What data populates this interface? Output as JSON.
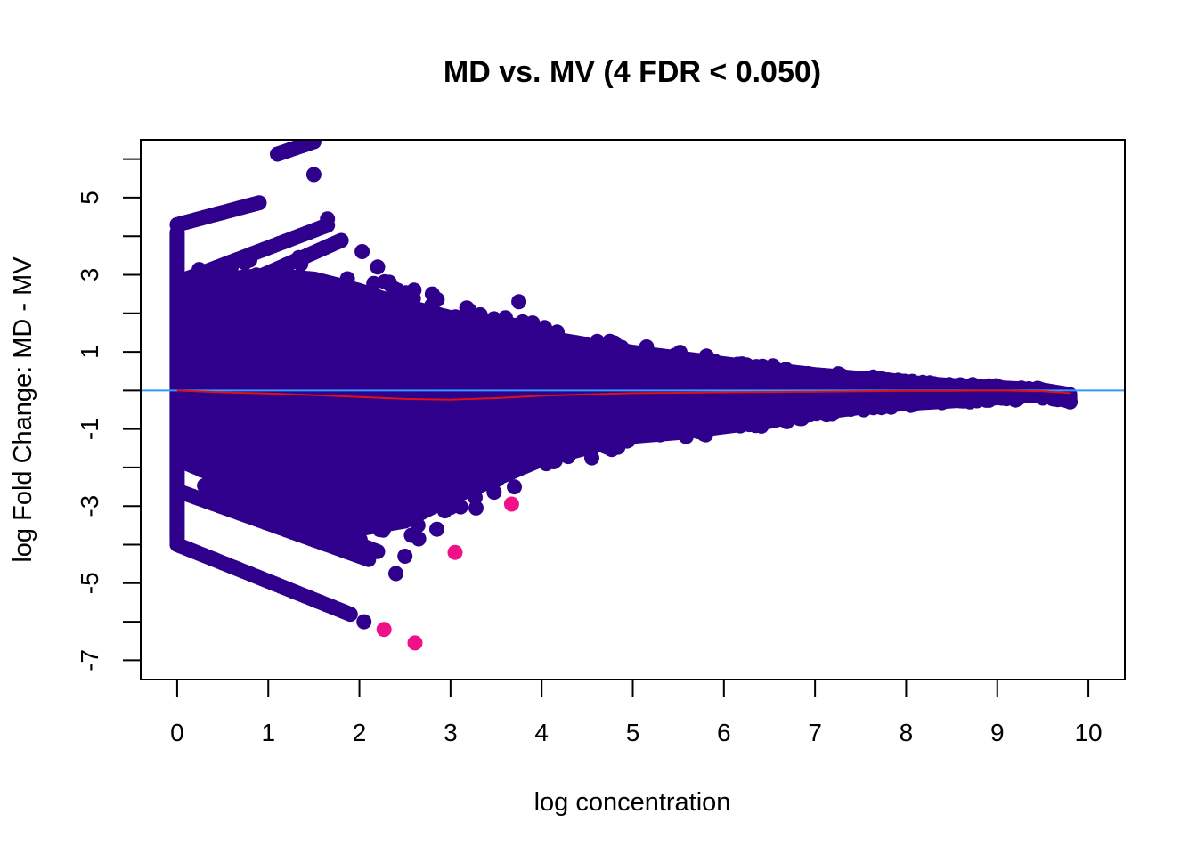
{
  "chart_data": {
    "type": "scatter",
    "title": "MD vs. MV (4 FDR < 0.050)",
    "xlabel": "log concentration",
    "ylabel": "log Fold Change: MD - MV",
    "xlim": [
      -0.4,
      10.4
    ],
    "ylim": [
      -7.5,
      6.5
    ],
    "x_ticks": [
      0,
      1,
      2,
      3,
      4,
      5,
      6,
      7,
      8,
      9,
      10
    ],
    "y_ticks": [
      -7,
      -6,
      -5,
      -4,
      -3,
      -2,
      -1,
      0,
      1,
      2,
      3,
      4,
      5,
      6
    ],
    "y_tick_labels": [
      "-7",
      "",
      "-5",
      "",
      "-3",
      "",
      "-1",
      "",
      "1",
      "",
      "3",
      "",
      "5",
      ""
    ],
    "grid": false,
    "legend": "none",
    "colors": {
      "points": "#2e008b",
      "significant": "#ee1188",
      "hline": "#3399ff",
      "trend": "#dd1111"
    },
    "hline_y": 0,
    "envelope_upper": [
      [
        0,
        2.6
      ],
      [
        0.5,
        2.9
      ],
      [
        1,
        3.0
      ],
      [
        1.5,
        2.9
      ],
      [
        2,
        2.6
      ],
      [
        2.5,
        2.2
      ],
      [
        3,
        1.9
      ],
      [
        3.5,
        1.7
      ],
      [
        4,
        1.4
      ],
      [
        4.5,
        1.2
      ],
      [
        5,
        1.0
      ],
      [
        5.5,
        0.85
      ],
      [
        6,
        0.7
      ],
      [
        6.5,
        0.55
      ],
      [
        7,
        0.42
      ],
      [
        7.5,
        0.32
      ],
      [
        8,
        0.22
      ],
      [
        8.5,
        0.14
      ],
      [
        9,
        0.08
      ],
      [
        9.5,
        0.02
      ],
      [
        9.8,
        -0.1
      ]
    ],
    "envelope_lower": [
      [
        0,
        -1.8
      ],
      [
        0.5,
        -2.3
      ],
      [
        1,
        -2.9
      ],
      [
        1.5,
        -3.4
      ],
      [
        2,
        -3.6
      ],
      [
        2.5,
        -3.4
      ],
      [
        3,
        -2.8
      ],
      [
        3.5,
        -2.3
      ],
      [
        4,
        -1.8
      ],
      [
        4.5,
        -1.5
      ],
      [
        5,
        -1.2
      ],
      [
        5.5,
        -1.1
      ],
      [
        6,
        -0.95
      ],
      [
        6.5,
        -0.8
      ],
      [
        7,
        -0.6
      ],
      [
        7.5,
        -0.45
      ],
      [
        8,
        -0.35
      ],
      [
        8.5,
        -0.28
      ],
      [
        9,
        -0.2
      ],
      [
        9.5,
        -0.12
      ],
      [
        9.8,
        -0.3
      ]
    ],
    "trend_line": [
      [
        0,
        0.0
      ],
      [
        0.5,
        -0.05
      ],
      [
        1,
        -0.08
      ],
      [
        1.5,
        -0.12
      ],
      [
        2,
        -0.17
      ],
      [
        2.5,
        -0.22
      ],
      [
        3,
        -0.24
      ],
      [
        3.5,
        -0.2
      ],
      [
        4,
        -0.14
      ],
      [
        4.5,
        -0.1
      ],
      [
        5,
        -0.07
      ],
      [
        5.5,
        -0.06
      ],
      [
        6,
        -0.05
      ],
      [
        6.5,
        -0.04
      ],
      [
        7,
        -0.03
      ],
      [
        7.5,
        -0.02
      ],
      [
        8,
        -0.01
      ],
      [
        8.5,
        -0.01
      ],
      [
        9,
        0.0
      ],
      [
        9.5,
        -0.02
      ],
      [
        9.8,
        -0.07
      ]
    ],
    "zero_count_bands": [
      {
        "x": [
          0,
          0.9
        ],
        "y0": 4.3,
        "slope": 0.63
      },
      {
        "x": [
          1.1,
          1.5
        ],
        "y0": 5.25,
        "slope": 0.8
      },
      {
        "x": [
          0,
          1.65
        ],
        "y0": 2.8,
        "slope": 0.9
      },
      {
        "x": [
          0.3,
          1.8
        ],
        "y0": 2.0,
        "slope": 1.05
      },
      {
        "x": [
          0,
          1.9
        ],
        "y0": -4.0,
        "slope": -0.95
      },
      {
        "x": [
          0,
          2.1
        ],
        "y0": -2.6,
        "slope": -0.85
      },
      {
        "x": [
          0.3,
          2.2
        ],
        "y0": -2.2,
        "slope": -0.9
      }
    ],
    "left_strip": {
      "x": 0,
      "y": [
        -3.9,
        4.1
      ]
    },
    "extra_points": [
      {
        "x": 1.5,
        "y": 5.6
      },
      {
        "x": 1.65,
        "y": 4.45
      },
      {
        "x": 2.03,
        "y": 3.6
      },
      {
        "x": 2.2,
        "y": 3.2
      },
      {
        "x": 2.6,
        "y": 2.6
      },
      {
        "x": 2.8,
        "y": 2.5
      },
      {
        "x": 3.75,
        "y": 2.3
      },
      {
        "x": 3.35,
        "y": 1.8
      },
      {
        "x": 3.6,
        "y": 1.75
      },
      {
        "x": 3.9,
        "y": 1.75
      },
      {
        "x": 4.5,
        "y": 1.2
      },
      {
        "x": 4.2,
        "y": 1.3
      },
      {
        "x": 2.4,
        "y": -4.75
      },
      {
        "x": 2.05,
        "y": -6.0
      },
      {
        "x": 2.5,
        "y": -4.3
      },
      {
        "x": 2.65,
        "y": -3.85
      },
      {
        "x": 2.85,
        "y": -3.6
      },
      {
        "x": 3.28,
        "y": -3.05
      },
      {
        "x": 3.7,
        "y": -2.5
      },
      {
        "x": 4.05,
        "y": -1.9
      },
      {
        "x": 4.55,
        "y": -1.75
      },
      {
        "x": 5.3,
        "y": -1.15
      },
      {
        "x": 5.8,
        "y": -1.15
      },
      {
        "x": 6.5,
        "y": -0.8
      },
      {
        "x": 9.8,
        "y": -0.3
      },
      {
        "x": 9.5,
        "y": -0.2
      },
      {
        "x": 9.2,
        "y": -0.25
      },
      {
        "x": 8.7,
        "y": -0.3
      }
    ],
    "significant_points": [
      {
        "x": 2.27,
        "y": -6.2
      },
      {
        "x": 2.61,
        "y": -6.55
      },
      {
        "x": 3.05,
        "y": -4.2
      },
      {
        "x": 3.67,
        "y": -2.95
      }
    ]
  }
}
